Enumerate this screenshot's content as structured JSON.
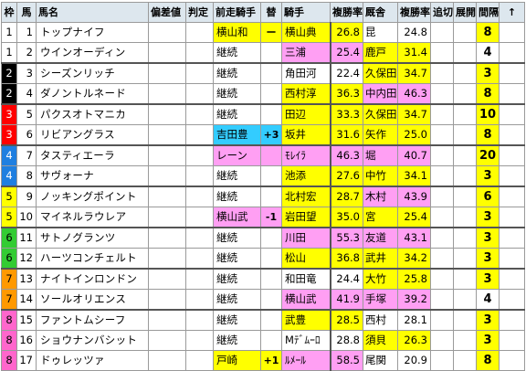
{
  "headers": {
    "waku": "枠",
    "uma": "馬",
    "name": "馬名",
    "hensachi": "偏差値",
    "hantei": "判定",
    "prev_jockey": "前走騎手",
    "change": "替",
    "jockey": "騎手",
    "jockey_rate": "複勝率",
    "stable": "厩舎",
    "stable_rate": "複勝率",
    "oikiri": "追切",
    "tenkai": "展開",
    "interval": "間隔",
    "arrow": "↑"
  },
  "colors": {
    "waku_1": "#ffffff",
    "waku_2": "#000000",
    "waku_3": "#ff0000",
    "waku_4": "#1f7fe0",
    "waku_5": "#ffff00",
    "waku_6": "#33cc33",
    "waku_7": "#ff9900",
    "waku_8": "#ff66cc",
    "pink": "#ff9ff3",
    "yellow": "#ffff00",
    "blue": "#33ccff",
    "header": "#dde7ee"
  },
  "rows": [
    {
      "waku": "1",
      "uma": "1",
      "name": "トップナイフ",
      "prev": "横山和",
      "prev_color": "yellow",
      "change": "ー",
      "jockey": "横山典",
      "jockey_color": "yellow",
      "jrate": "26.8",
      "stable": "昆",
      "stable_color": "none",
      "srate": "24.8",
      "interval": "8",
      "interval_color": "yellow"
    },
    {
      "waku": "1",
      "uma": "2",
      "name": "ウインオーディン",
      "prev": "継続",
      "prev_color": "none",
      "change": "",
      "jockey": "三浦",
      "jockey_color": "pink",
      "jrate": "25.4",
      "stable": "鹿戸",
      "stable_color": "yellow",
      "srate": "31.4",
      "interval": "4",
      "interval_color": "none"
    },
    {
      "waku": "2",
      "uma": "3",
      "name": "シーズンリッチ",
      "prev": "継続",
      "prev_color": "none",
      "change": "",
      "jockey": "角田河",
      "jockey_color": "none",
      "jrate": "22.4",
      "stable": "久保田",
      "stable_color": "yellow",
      "srate": "34.7",
      "interval": "3",
      "interval_color": "yellow"
    },
    {
      "waku": "2",
      "uma": "4",
      "name": "ダノントルネード",
      "prev": "継続",
      "prev_color": "none",
      "change": "",
      "jockey": "西村淳",
      "jockey_color": "yellow",
      "jrate": "36.3",
      "stable": "中内田",
      "stable_color": "pink",
      "srate": "46.3",
      "interval": "8",
      "interval_color": "yellow"
    },
    {
      "waku": "3",
      "uma": "5",
      "name": "パクスオトマニカ",
      "prev": "継続",
      "prev_color": "none",
      "change": "",
      "jockey": "田辺",
      "jockey_color": "yellow",
      "jrate": "33.3",
      "stable": "久保田",
      "stable_color": "yellow",
      "srate": "34.7",
      "interval": "10",
      "interval_color": "yellow"
    },
    {
      "waku": "3",
      "uma": "6",
      "name": "リビアングラス",
      "prev": "吉田豊",
      "prev_color": "blue",
      "change": "+3",
      "jockey": "坂井",
      "jockey_color": "yellow",
      "jrate": "31.6",
      "stable": "矢作",
      "stable_color": "yellow",
      "srate": "25.0",
      "interval": "8",
      "interval_color": "yellow"
    },
    {
      "waku": "4",
      "uma": "7",
      "name": "タスティエーラ",
      "prev": "レーン",
      "prev_color": "pink",
      "change": "",
      "jockey": "ﾓﾚｲﾗ",
      "jockey_color": "pink",
      "jrate": "46.3",
      "stable": "堀",
      "stable_color": "pink",
      "srate": "40.7",
      "interval": "20",
      "interval_color": "yellow"
    },
    {
      "waku": "4",
      "uma": "8",
      "name": "サヴォーナ",
      "prev": "継続",
      "prev_color": "none",
      "change": "",
      "jockey": "池添",
      "jockey_color": "yellow",
      "jrate": "27.6",
      "stable": "中竹",
      "stable_color": "yellow",
      "srate": "34.1",
      "interval": "3",
      "interval_color": "yellow"
    },
    {
      "waku": "5",
      "uma": "9",
      "name": "ノッキングポイント",
      "prev": "継続",
      "prev_color": "none",
      "change": "",
      "jockey": "北村宏",
      "jockey_color": "yellow",
      "jrate": "28.7",
      "stable": "木村",
      "stable_color": "pink",
      "srate": "43.9",
      "interval": "6",
      "interval_color": "yellow"
    },
    {
      "waku": "5",
      "uma": "10",
      "name": "マイネルラウレア",
      "prev": "横山武",
      "prev_color": "pink",
      "change": "-1",
      "jockey": "岩田望",
      "jockey_color": "yellow",
      "jrate": "35.0",
      "stable": "宮",
      "stable_color": "yellow",
      "srate": "25.4",
      "interval": "3",
      "interval_color": "yellow"
    },
    {
      "waku": "6",
      "uma": "11",
      "name": "サトノグランツ",
      "prev": "継続",
      "prev_color": "none",
      "change": "",
      "jockey": "川田",
      "jockey_color": "pink",
      "jrate": "55.3",
      "stable": "友道",
      "stable_color": "pink",
      "srate": "43.1",
      "interval": "3",
      "interval_color": "yellow"
    },
    {
      "waku": "6",
      "uma": "12",
      "name": "ハーツコンチェルト",
      "prev": "継続",
      "prev_color": "none",
      "change": "",
      "jockey": "松山",
      "jockey_color": "yellow",
      "jrate": "36.8",
      "stable": "武井",
      "stable_color": "yellow",
      "srate": "34.2",
      "interval": "3",
      "interval_color": "yellow"
    },
    {
      "waku": "7",
      "uma": "13",
      "name": "ナイトインロンドン",
      "prev": "継続",
      "prev_color": "none",
      "change": "",
      "jockey": "和田竜",
      "jockey_color": "none",
      "jrate": "24.4",
      "stable": "大竹",
      "stable_color": "yellow",
      "srate": "25.8",
      "interval": "3",
      "interval_color": "yellow"
    },
    {
      "waku": "7",
      "uma": "14",
      "name": "ソールオリエンス",
      "prev": "継続",
      "prev_color": "none",
      "change": "",
      "jockey": "横山武",
      "jockey_color": "pink",
      "jrate": "41.9",
      "stable": "手塚",
      "stable_color": "pink",
      "srate": "39.2",
      "interval": "4",
      "interval_color": "none"
    },
    {
      "waku": "8",
      "uma": "15",
      "name": "ファントムシーフ",
      "prev": "継続",
      "prev_color": "none",
      "change": "",
      "jockey": "武豊",
      "jockey_color": "yellow",
      "jrate": "28.5",
      "stable": "西村",
      "stable_color": "none",
      "srate": "28.1",
      "interval": "3",
      "interval_color": "yellow"
    },
    {
      "waku": "8",
      "uma": "16",
      "name": "ショウナンバシット",
      "prev": "継続",
      "prev_color": "none",
      "change": "",
      "jockey": "Mﾃﾞﾑｰﾛ",
      "jockey_color": "none",
      "jrate": "28.8",
      "stable": "須貝",
      "stable_color": "yellow",
      "srate": "26.3",
      "interval": "3",
      "interval_color": "yellow"
    },
    {
      "waku": "8",
      "uma": "17",
      "name": "ドゥレッツァ",
      "prev": "戸崎",
      "prev_color": "yellow",
      "change": "+1",
      "jockey": "ﾙﾒｰﾙ",
      "jockey_color": "pink",
      "jrate": "58.5",
      "stable": "尾関",
      "stable_color": "none",
      "srate": "20.9",
      "interval": "8",
      "interval_color": "yellow"
    }
  ]
}
